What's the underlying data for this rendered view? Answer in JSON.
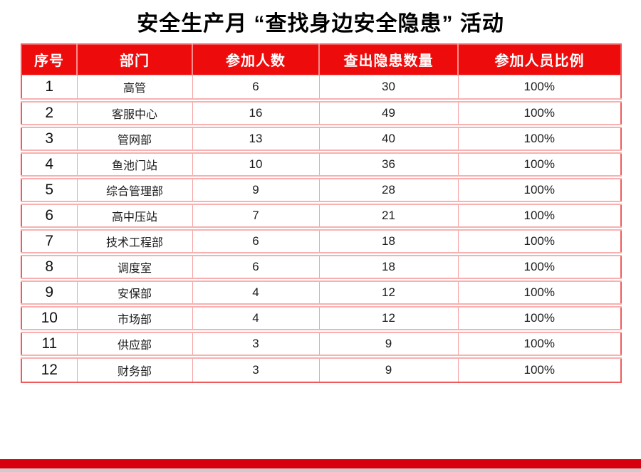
{
  "title": "安全生产月 “查找身边安全隐患” 活动",
  "colors": {
    "header_bg": "#ee0b0b",
    "header_text": "#ffffff",
    "header_divider": "#ff8f8f",
    "outer_border": "#f15a5a",
    "inner_border": "#f6a3a3",
    "row_separator": "#f8b0b0",
    "body_text": "#1c1c1c",
    "footer_bar": "#d8000f",
    "footer_strip": "#cccccc",
    "background": "#ffffff"
  },
  "table": {
    "headers": [
      "序号",
      "部门",
      "参加人数",
      "查出隐患数量",
      "参加人员比例"
    ],
    "column_keys": [
      "serial",
      "department",
      "participants",
      "hazards-found",
      "participation-rate"
    ],
    "rows": [
      [
        "1",
        "高管",
        "6",
        "30",
        "100%"
      ],
      [
        "2",
        "客服中心",
        "16",
        "49",
        "100%"
      ],
      [
        "3",
        "管网部",
        "13",
        "40",
        "100%"
      ],
      [
        "4",
        "鱼池门站",
        "10",
        "36",
        "100%"
      ],
      [
        "5",
        "综合管理部",
        "9",
        "28",
        "100%"
      ],
      [
        "6",
        "高中压站",
        "7",
        "21",
        "100%"
      ],
      [
        "7",
        "技术工程部",
        "6",
        "18",
        "100%"
      ],
      [
        "8",
        "调度室",
        "6",
        "18",
        "100%"
      ],
      [
        "9",
        "安保部",
        "4",
        "12",
        "100%"
      ],
      [
        "10",
        "市场部",
        "4",
        "12",
        "100%"
      ],
      [
        "11",
        "供应部",
        "3",
        "9",
        "100%"
      ],
      [
        "12",
        "财务部",
        "3",
        "9",
        "100%"
      ]
    ]
  }
}
